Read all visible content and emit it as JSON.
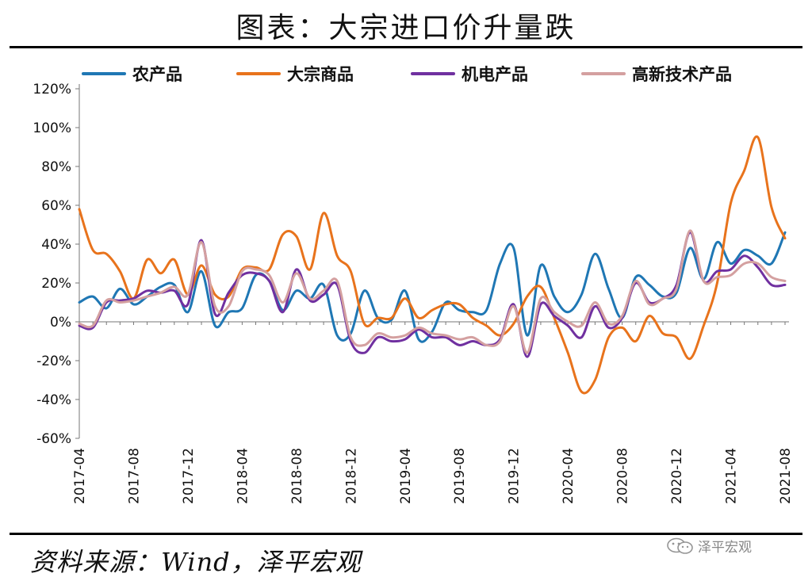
{
  "title": "图表：大宗进口价升量跌",
  "source": "资料来源：Wind，泽平宏观",
  "watermark": "泽平宏观",
  "watermark_icon": "wechat-icon",
  "chart_data": {
    "type": "line",
    "x": [
      "2017-04",
      "2017-05",
      "2017-06",
      "2017-07",
      "2017-08",
      "2017-09",
      "2017-10",
      "2017-11",
      "2017-12",
      "2018-01",
      "2018-02",
      "2018-03",
      "2018-04",
      "2018-05",
      "2018-06",
      "2018-07",
      "2018-08",
      "2018-09",
      "2018-10",
      "2018-11",
      "2018-12",
      "2019-01",
      "2019-02",
      "2019-03",
      "2019-04",
      "2019-05",
      "2019-06",
      "2019-07",
      "2019-08",
      "2019-09",
      "2019-10",
      "2019-11",
      "2019-12",
      "2020-01",
      "2020-02",
      "2020-03",
      "2020-04",
      "2020-05",
      "2020-06",
      "2020-07",
      "2020-08",
      "2020-09",
      "2020-10",
      "2020-11",
      "2020-12",
      "2021-01",
      "2021-02",
      "2021-03",
      "2021-04",
      "2021-05",
      "2021-06",
      "2021-07",
      "2021-08"
    ],
    "xticks": [
      "2017-04",
      "2017-08",
      "2017-12",
      "2018-04",
      "2018-08",
      "2018-12",
      "2019-04",
      "2019-08",
      "2019-12",
      "2020-04",
      "2020-08",
      "2020-12",
      "2021-04",
      "2021-08"
    ],
    "ylim": [
      -60,
      120
    ],
    "yticks": [
      "-60%",
      "-40%",
      "-20%",
      "0%",
      "20%",
      "40%",
      "60%",
      "80%",
      "100%",
      "120%"
    ],
    "legend_position": "top",
    "grid": false,
    "series": [
      {
        "name": "农产品",
        "color": "#1f77b4",
        "values": [
          10,
          13,
          7,
          17,
          9,
          13,
          18,
          19,
          5,
          26,
          -2,
          5,
          7,
          24,
          21,
          6,
          16,
          12,
          19,
          -7,
          -6,
          16,
          2,
          1,
          16,
          -9,
          -5,
          10,
          6,
          5,
          6,
          30,
          38,
          -7,
          29,
          13,
          5,
          14,
          35,
          17,
          2,
          23,
          19,
          13,
          15,
          38,
          22,
          41,
          30,
          37,
          34,
          30,
          46
        ]
      },
      {
        "name": "大宗商品",
        "color": "#e8731c",
        "values": [
          58,
          37,
          35,
          26,
          12,
          32,
          25,
          32,
          14,
          29,
          14,
          13,
          27,
          28,
          27,
          45,
          44,
          27,
          56,
          34,
          26,
          -1,
          2,
          2,
          12,
          2,
          6,
          9,
          9,
          2,
          -2,
          -7,
          -1,
          13,
          18,
          2,
          -16,
          -36,
          -30,
          -8,
          -3,
          -10,
          3,
          -6,
          -8,
          -19,
          -2,
          20,
          61,
          78,
          95,
          59,
          43
        ]
      },
      {
        "name": "机电产品",
        "color": "#7030a0",
        "values": [
          -2,
          -3,
          10,
          11,
          12,
          16,
          15,
          16,
          9,
          42,
          4,
          15,
          24,
          25,
          21,
          5,
          27,
          11,
          14,
          19,
          -10,
          -16,
          -8,
          -10,
          -9,
          -4,
          -8,
          -8,
          -12,
          -10,
          -12,
          -9,
          9,
          -18,
          9,
          3,
          -2,
          -8,
          8,
          -3,
          2,
          20,
          10,
          12,
          19,
          46,
          21,
          26,
          27,
          34,
          28,
          19,
          19
        ]
      },
      {
        "name": "高新技术产品",
        "color": "#d4a0a0",
        "values": [
          -1,
          -2,
          11,
          10,
          11,
          13,
          15,
          18,
          14,
          41,
          8,
          8,
          26,
          27,
          24,
          10,
          25,
          12,
          16,
          21,
          -8,
          -12,
          -6,
          -8,
          -7,
          -3,
          -6,
          -7,
          -9,
          -8,
          -12,
          -10,
          8,
          -16,
          12,
          5,
          0,
          -2,
          10,
          -1,
          3,
          21,
          9,
          12,
          17,
          47,
          21,
          23,
          24,
          30,
          30,
          23,
          21
        ]
      }
    ]
  }
}
